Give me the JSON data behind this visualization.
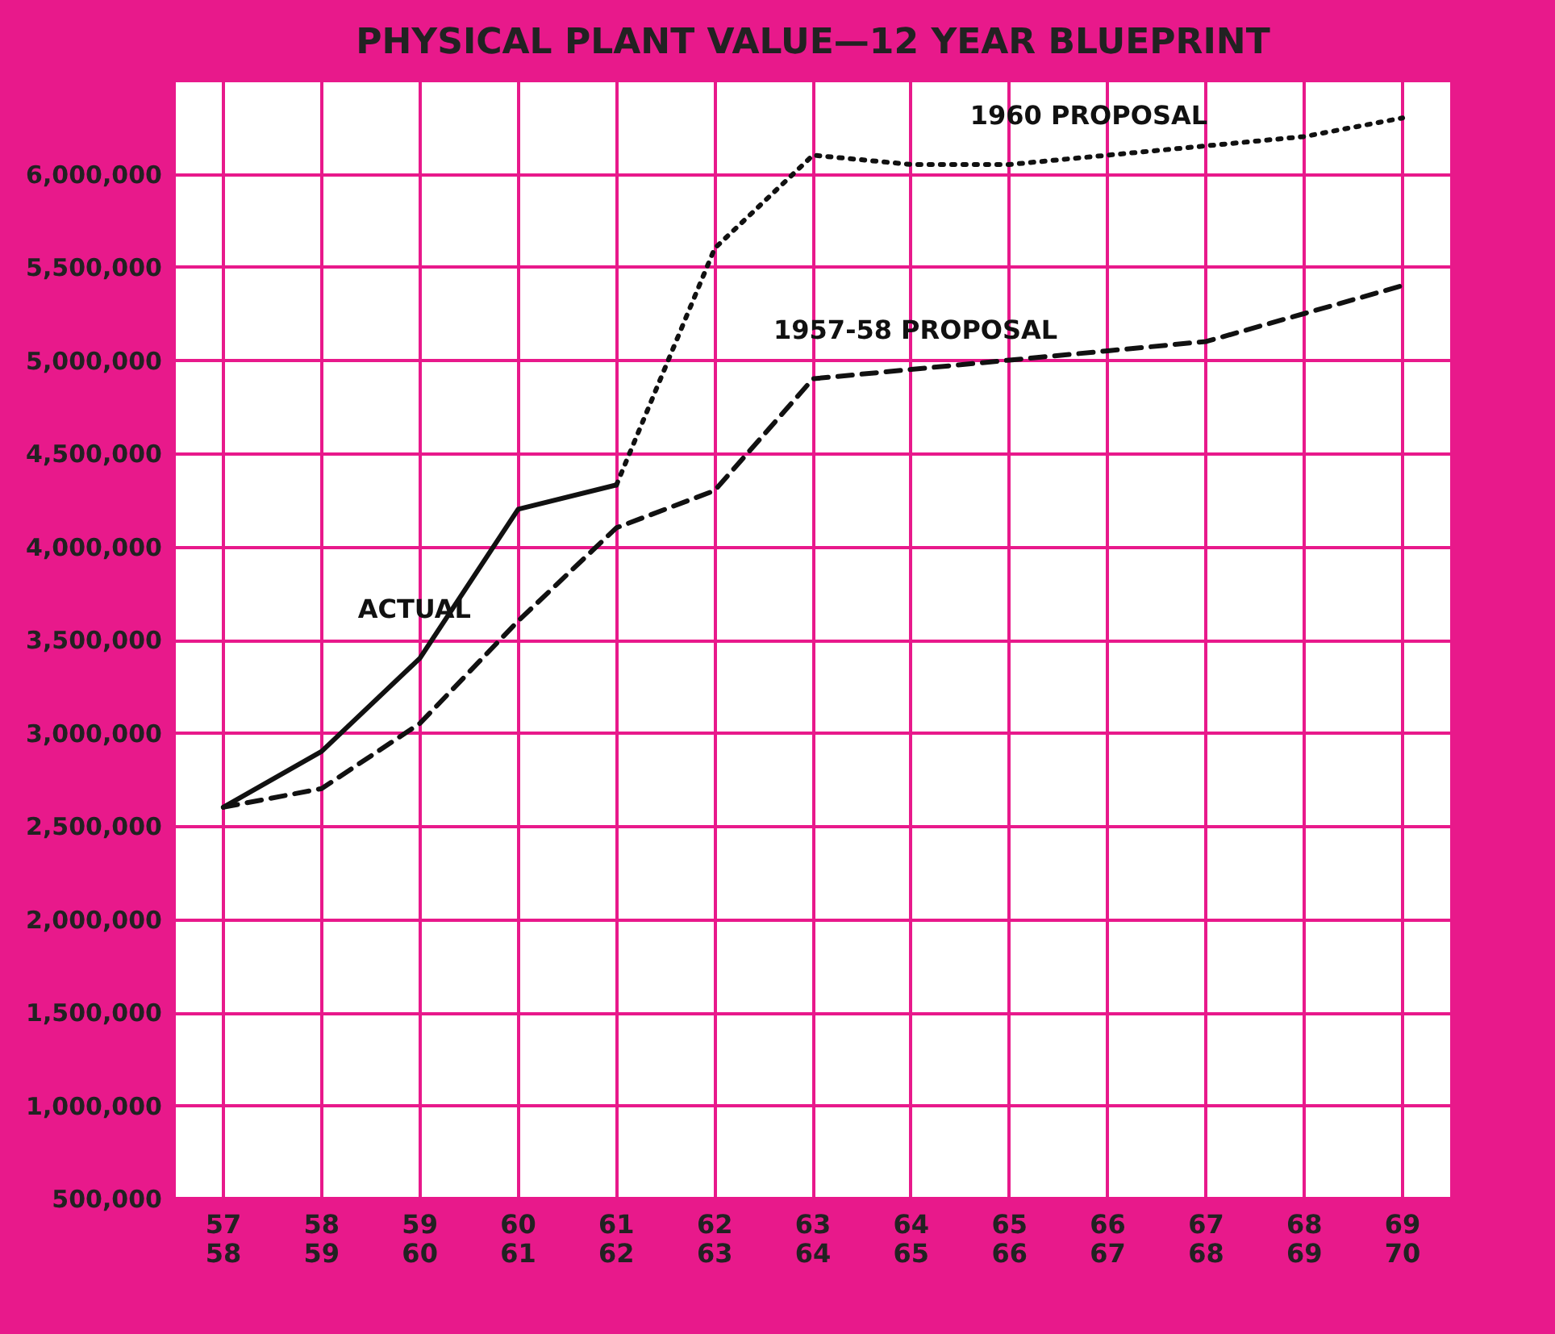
{
  "chart_data": {
    "type": "line",
    "title": "PHYSICAL PLANT VALUE—12 YEAR BLUEPRINT",
    "categories": [
      "57\n58",
      "58\n59",
      "59\n60",
      "60\n61",
      "61\n62",
      "62\n63",
      "63\n64",
      "64\n65",
      "65\n66",
      "66\n67",
      "67\n68",
      "68\n69",
      "69\n70"
    ],
    "series": [
      {
        "name": "ACTUAL",
        "color": "#111111",
        "line_style": "solid",
        "values": [
          2600000,
          2900000,
          3400000,
          4200000,
          4330000,
          null,
          null,
          null,
          null,
          null,
          null,
          null,
          null
        ]
      },
      {
        "name": "1957-58 PROPOSAL",
        "color": "#111111",
        "line_style": "dashed",
        "values": [
          2600000,
          2700000,
          3050000,
          3600000,
          4100000,
          4300000,
          4900000,
          4950000,
          5000000,
          5050000,
          5100000,
          5250000,
          5400000
        ]
      },
      {
        "name": "1960 PROPOSAL",
        "color": "#111111",
        "line_style": "dotted",
        "values": [
          null,
          null,
          null,
          null,
          4330000,
          5600000,
          6100000,
          6050000,
          6050000,
          6100000,
          6150000,
          6200000,
          6300000
        ]
      }
    ],
    "ylim": [
      500000,
      6500000
    ],
    "yticks": [
      {
        "value": 500000,
        "label": "500,000"
      },
      {
        "value": 1000000,
        "label": "1,000,000"
      },
      {
        "value": 1500000,
        "label": "1,500,000"
      },
      {
        "value": 2000000,
        "label": "2,000,000"
      },
      {
        "value": 2500000,
        "label": "2,500,000"
      },
      {
        "value": 3000000,
        "label": "3,000,000"
      },
      {
        "value": 3500000,
        "label": "3,500,000"
      },
      {
        "value": 4000000,
        "label": "4,000,000"
      },
      {
        "value": 4500000,
        "label": "4,500,000"
      },
      {
        "value": 5000000,
        "label": "5,000,000"
      },
      {
        "value": 5500000,
        "label": "5,500,000"
      },
      {
        "value": 6000000,
        "label": "6,000,000"
      }
    ],
    "grid": true,
    "marker": "none"
  }
}
